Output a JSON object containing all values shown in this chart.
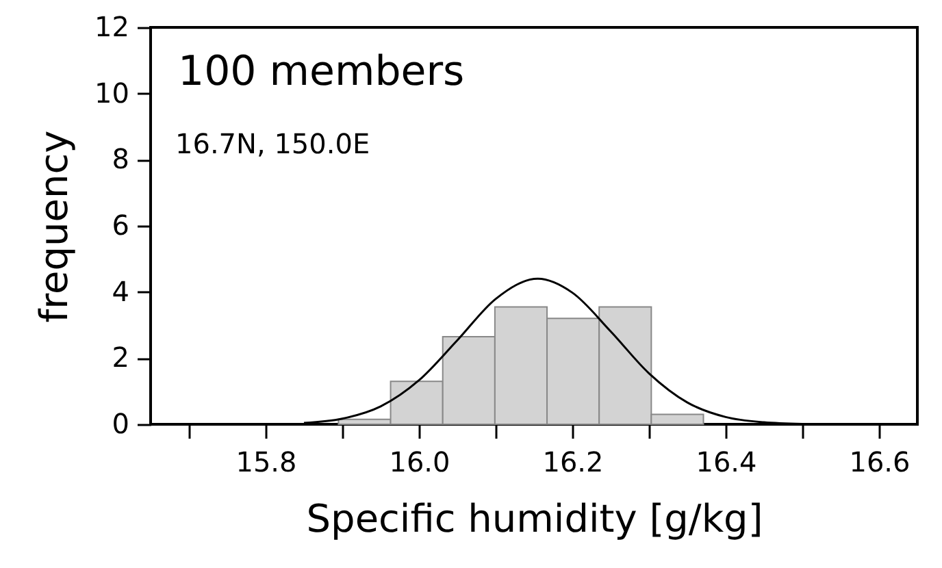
{
  "chart_data": {
    "type": "histogram",
    "xlabel": "Specific humidity [g/kg]",
    "ylabel": "frequency",
    "annotations": [
      "100 members",
      "16.7N, 150.0E"
    ],
    "bins": [
      15.895,
      15.963,
      16.031,
      16.099,
      16.167,
      16.235,
      16.303,
      16.371
    ],
    "values": [
      0.15,
      1.3,
      2.65,
      3.55,
      3.2,
      3.55,
      0.3
    ],
    "color": "#d3d3d3",
    "series": [
      {
        "type": "line",
        "color": "#000000",
        "x": [
          15.85,
          15.9,
          15.95,
          16.0,
          16.05,
          16.1,
          16.155,
          16.2,
          16.25,
          16.3,
          16.35,
          16.4,
          16.45,
          16.5
        ],
        "values": [
          0.04,
          0.17,
          0.54,
          1.33,
          2.54,
          3.79,
          4.4,
          3.98,
          2.81,
          1.54,
          0.66,
          0.22,
          0.06,
          0.01
        ]
      }
    ],
    "xlim": [
      15.65,
      16.65
    ],
    "xticks": [
      {
        "value": 15.7,
        "label": null
      },
      15.8,
      {
        "value": 15.9,
        "label": null
      },
      {
        "value": 16.0,
        "label": "16.0"
      },
      {
        "value": 16.1,
        "label": null
      },
      16.2,
      {
        "value": 16.3,
        "label": null
      },
      16.4,
      {
        "value": 16.5,
        "label": null
      },
      16.6
    ],
    "ylim": [
      0,
      12
    ],
    "yticks": [
      0,
      2,
      4,
      6,
      8,
      10,
      12
    ],
    "grid": false
  }
}
